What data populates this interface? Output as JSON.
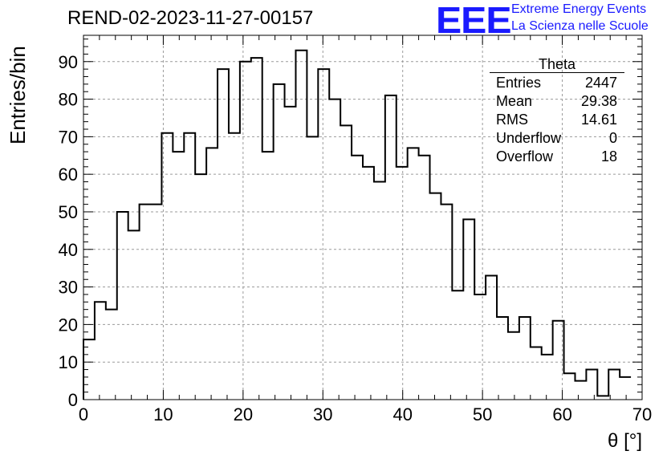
{
  "header": {
    "title": "REND-02-2023-11-27-00157",
    "logo_text": "EEE",
    "logo_line1": "Extreme Energy Events",
    "logo_line2": "La Scienza nelle Scuole"
  },
  "stats": {
    "name": "Theta",
    "rows": [
      {
        "label": "Entries",
        "value": "2447"
      },
      {
        "label": "Mean",
        "value": "29.38"
      },
      {
        "label": "RMS",
        "value": "14.61"
      },
      {
        "label": "Underflow",
        "value": "0"
      },
      {
        "label": "Overflow",
        "value": "18"
      }
    ]
  },
  "colors": {
    "logo": "#1a1aff",
    "line": "#000000",
    "grid": "#9a9a9a"
  },
  "chart_data": {
    "type": "histogram",
    "xlabel": "θ [°]",
    "ylabel": "Entries/bin",
    "xlim": [
      0,
      70
    ],
    "ylim": [
      0,
      97
    ],
    "xticks": [
      0,
      10,
      20,
      30,
      40,
      50,
      60,
      70
    ],
    "yticks": [
      0,
      10,
      20,
      30,
      40,
      50,
      60,
      70,
      80,
      90
    ],
    "grid": true,
    "bin_width": 1.4,
    "values": [
      16,
      26,
      24,
      50,
      45,
      52,
      52,
      71,
      66,
      71,
      60,
      67,
      88,
      71,
      90,
      91,
      66,
      84,
      78,
      93,
      70,
      88,
      80,
      73,
      65,
      62,
      58,
      81,
      62,
      67,
      65,
      55,
      52,
      29,
      48,
      28,
      33,
      22,
      18,
      22,
      14,
      12,
      21,
      7,
      5,
      8,
      1,
      8,
      6
    ]
  }
}
